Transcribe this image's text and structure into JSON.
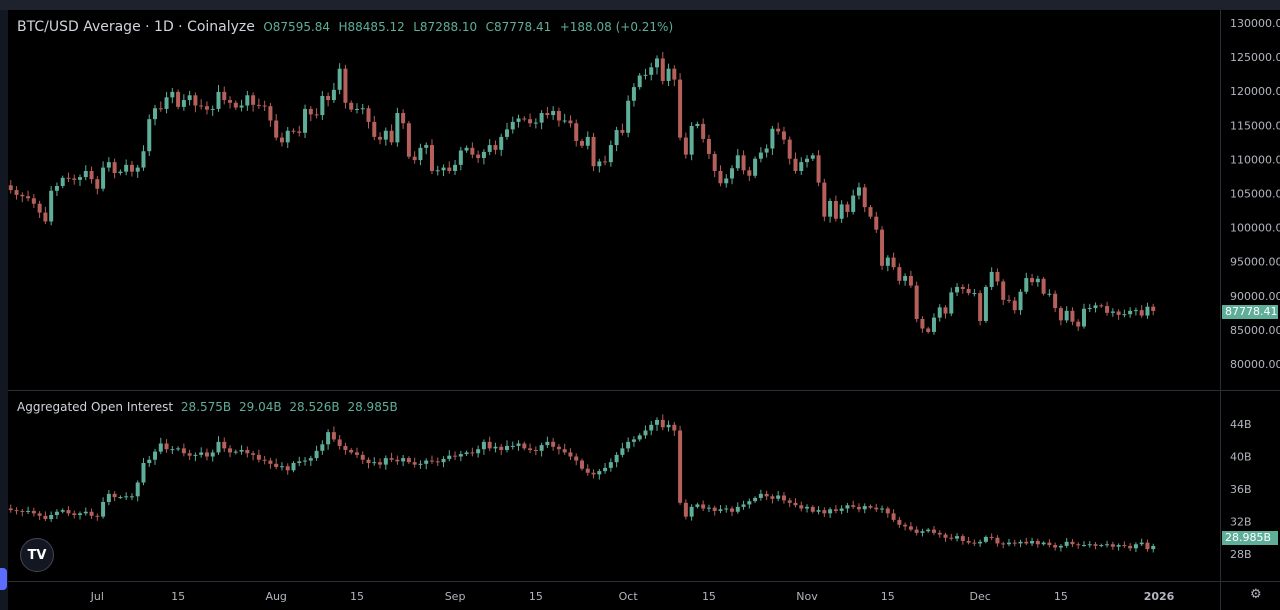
{
  "header": {
    "title": "BTC/USD Average · 1D · Coinalyze",
    "open": "O87595.84",
    "high": "H88485.12",
    "low": "L87288.10",
    "close": "C87778.41",
    "change": "+188.08 (+0.21%)"
  },
  "oi_header": {
    "title": "Aggregated Open Interest",
    "v1": "28.575B",
    "v2": "29.04B",
    "v3": "28.526B",
    "v4": "28.985B"
  },
  "price_badge": "87778.41",
  "oi_badge": "28.985B",
  "icons": {
    "logo": "tradingview-logo",
    "settings": "gear-icon"
  },
  "logo_text": "TV",
  "colors": {
    "up": "#5fae9a",
    "down": "#b5605a",
    "background": "#000000",
    "grid": "#2a2e39",
    "text": "#b2b5be"
  },
  "chart_data": [
    {
      "type": "candlestick",
      "title": "BTC/USD Average · 1D · Coinalyze",
      "start_date": "2025-06-15",
      "interval": "1D",
      "ylim": [
        78000,
        131000
      ],
      "yticks": [
        80000,
        85000,
        90000,
        95000,
        100000,
        105000,
        110000,
        115000,
        120000,
        125000,
        130000
      ],
      "ytick_labels": [
        "80000.00",
        "85000.00",
        "90000.00",
        "95000.00",
        "100000.00",
        "105000.00",
        "110000.00",
        "115000.00",
        "120000.00",
        "125000.00",
        "130000.00"
      ],
      "close_thousands": [
        106.2,
        105.5,
        104.8,
        104.6,
        104.3,
        103.5,
        102.2,
        100.9,
        105.4,
        106.1,
        107.3,
        107.2,
        107.0,
        107.4,
        108.3,
        107.1,
        105.7,
        108.8,
        109.6,
        108.0,
        108.2,
        109.2,
        108.2,
        108.8,
        111.2,
        115.9,
        117.5,
        117.4,
        119.1,
        119.9,
        117.7,
        118.7,
        119.4,
        117.9,
        117.8,
        117.3,
        117.4,
        119.9,
        118.7,
        118.3,
        117.6,
        117.9,
        119.4,
        118.0,
        117.9,
        117.8,
        115.7,
        113.2,
        112.5,
        114.2,
        114.1,
        113.9,
        117.4,
        116.6,
        116.5,
        119.3,
        118.7,
        120.2,
        123.3,
        118.3,
        117.3,
        117.4,
        117.5,
        115.5,
        113.3,
        112.9,
        114.2,
        112.5,
        116.8,
        115.3,
        110.4,
        109.9,
        111.7,
        112.1,
        108.3,
        108.4,
        108.8,
        108.3,
        109.2,
        111.3,
        111.7,
        110.7,
        110.2,
        111.1,
        112.1,
        111.4,
        113.3,
        114.4,
        115.5,
        116.0,
        115.9,
        115.3,
        115.4,
        116.8,
        116.5,
        117.1,
        115.7,
        115.7,
        115.3,
        112.7,
        112.0,
        113.3,
        109.0,
        109.7,
        109.6,
        112.1,
        114.3,
        113.9,
        118.6,
        120.6,
        122.3,
        122.4,
        123.5,
        124.8,
        121.5,
        123.3,
        121.7,
        113.2,
        110.7,
        114.9,
        115.2,
        113.0,
        110.8,
        108.3,
        106.5,
        107.2,
        108.7,
        110.6,
        108.4,
        107.6,
        110.1,
        111.0,
        111.6,
        114.5,
        114.1,
        112.9,
        110.1,
        108.3,
        109.6,
        110.1,
        110.6,
        106.6,
        101.6,
        103.9,
        101.3,
        103.4,
        102.3,
        104.7,
        105.9,
        103.0,
        101.6,
        99.7,
        94.4,
        95.6,
        94.2,
        92.2,
        92.9,
        91.5,
        86.6,
        85.2,
        84.7,
        86.8,
        88.3,
        87.4,
        90.5,
        91.3,
        91.0,
        90.4,
        90.4,
        86.3,
        91.3,
        93.5,
        92.1,
        89.4,
        89.3,
        87.9,
        90.6,
        92.6,
        92.0,
        92.5,
        90.3,
        90.3,
        88.2,
        86.4,
        87.8,
        86.2,
        85.5,
        88.1,
        88.2,
        88.6,
        88.5,
        87.5,
        87.7,
        87.2,
        87.3,
        87.8,
        87.9,
        87.1,
        88.4,
        87.778
      ],
      "last": {
        "open": 87595.84,
        "high": 88485.12,
        "low": 87288.1,
        "close": 87778.41,
        "change": 188.08,
        "change_pct": 0.21
      }
    },
    {
      "type": "candlestick",
      "title": "Aggregated Open Interest",
      "start_date": "2025-06-15",
      "unit": "B",
      "ylim": [
        27,
        46
      ],
      "yticks": [
        28,
        32,
        36,
        40,
        44
      ],
      "ytick_labels": [
        "28B",
        "32B",
        "36B",
        "40B",
        "44B"
      ],
      "close_billions": [
        33.6,
        33.4,
        33.3,
        33.2,
        33.3,
        33.0,
        32.7,
        32.3,
        32.8,
        33.2,
        33.4,
        33.0,
        32.8,
        33.0,
        33.2,
        32.7,
        32.6,
        34.4,
        35.4,
        35.0,
        35.0,
        35.1,
        35.1,
        36.8,
        39.2,
        39.6,
        40.6,
        41.6,
        40.9,
        40.9,
        41.0,
        40.4,
        40.1,
        40.2,
        40.5,
        40.0,
        40.5,
        41.8,
        41.0,
        40.5,
        40.6,
        40.8,
        40.4,
        40.2,
        39.6,
        39.5,
        39.1,
        38.7,
        38.8,
        38.3,
        39.2,
        39.4,
        39.5,
        39.8,
        40.7,
        41.5,
        43.0,
        42.1,
        41.3,
        40.8,
        40.5,
        40.2,
        39.6,
        39.2,
        39.3,
        39.0,
        39.8,
        39.6,
        39.4,
        39.8,
        39.3,
        39.0,
        39.1,
        39.5,
        39.4,
        39.3,
        39.7,
        40.1,
        40.0,
        40.3,
        40.5,
        40.4,
        40.9,
        41.8,
        41.0,
        41.2,
        40.8,
        41.3,
        41.3,
        41.6,
        41.0,
        40.8,
        40.7,
        41.4,
        41.8,
        41.2,
        40.9,
        40.5,
        40.0,
        39.5,
        38.5,
        38.0,
        37.8,
        38.2,
        38.6,
        39.3,
        40.2,
        41.0,
        41.8,
        42.1,
        42.6,
        43.2,
        43.9,
        44.5,
        43.6,
        43.9,
        43.2,
        34.3,
        32.6,
        33.8,
        34.1,
        33.6,
        33.7,
        33.3,
        33.5,
        33.6,
        33.2,
        33.8,
        34.1,
        34.5,
        34.9,
        35.4,
        35.1,
        34.8,
        35.2,
        34.6,
        34.3,
        34.0,
        33.6,
        33.8,
        33.2,
        33.4,
        33.0,
        33.5,
        33.3,
        33.6,
        34.0,
        33.8,
        33.5,
        33.9,
        33.7,
        33.5,
        33.6,
        33.0,
        32.2,
        31.6,
        31.4,
        31.0,
        30.6,
        30.8,
        31.0,
        30.6,
        30.4,
        30.0,
        29.9,
        30.2,
        29.6,
        29.4,
        29.3,
        29.5,
        30.1,
        30.0,
        29.3,
        29.2,
        29.4,
        29.3,
        29.5,
        29.3,
        29.6,
        29.2,
        29.4,
        29.1,
        28.8,
        29.0,
        29.5,
        29.2,
        29.1,
        29.1,
        29.2,
        29.0,
        29.1,
        29.2,
        28.9,
        29.1,
        29.0,
        28.7,
        29.2,
        29.4,
        28.6,
        28.985
      ],
      "last": {
        "open": 28.575,
        "high": 29.04,
        "low": 28.526,
        "close": 28.985
      }
    }
  ],
  "xaxis": {
    "ticks": [
      {
        "label": "Jul",
        "date": "2025-07-01"
      },
      {
        "label": "15",
        "date": "2025-07-15"
      },
      {
        "label": "Aug",
        "date": "2025-08-01"
      },
      {
        "label": "15",
        "date": "2025-08-15"
      },
      {
        "label": "Sep",
        "date": "2025-09-01"
      },
      {
        "label": "15",
        "date": "2025-09-15"
      },
      {
        "label": "Oct",
        "date": "2025-10-01"
      },
      {
        "label": "15",
        "date": "2025-10-15"
      },
      {
        "label": "Nov",
        "date": "2025-11-01"
      },
      {
        "label": "15",
        "date": "2025-11-15"
      },
      {
        "label": "Dec",
        "date": "2025-12-01"
      },
      {
        "label": "15",
        "date": "2025-12-15"
      },
      {
        "label": "2026",
        "date": "2026-01-01"
      }
    ]
  }
}
